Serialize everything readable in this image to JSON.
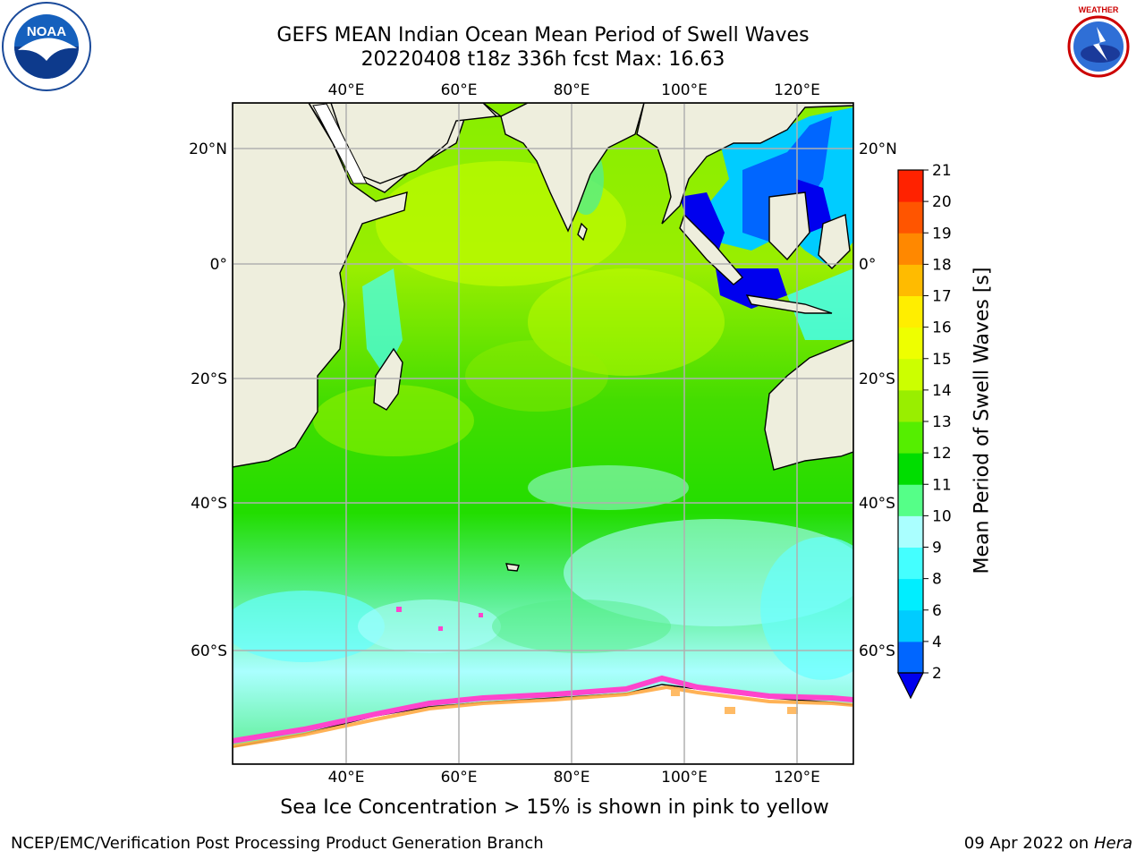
{
  "title": {
    "line1": "GEFS MEAN Indian Ocean Mean Period of Swell Waves",
    "line2": "20220408 t18z 336h fcst   Max: 16.63"
  },
  "logos": {
    "left": {
      "name": "noaa-logo",
      "text": "NOAA"
    },
    "right": {
      "name": "nws-logo",
      "text": "NATIONAL WEATHER SERVICE"
    }
  },
  "map": {
    "lon_labels_top": [
      "40°E",
      "60°E",
      "80°E",
      "100°E",
      "120°E"
    ],
    "lon_labels_bottom": [
      "40°E",
      "60°E",
      "80°E",
      "100°E",
      "120°E"
    ],
    "lat_labels_left": [
      "20°N",
      "0°",
      "20°S",
      "40°S",
      "60°S"
    ],
    "lat_labels_right": [
      "20°N",
      "0°",
      "20°S",
      "40°S",
      "60°S"
    ],
    "land_color": "#eeeedd",
    "grid_color": "#b0b0b0"
  },
  "colorbar": {
    "label": "Mean Period of Swell Waves [s]",
    "ticks": [
      "2",
      "4",
      "6",
      "8",
      "9",
      "10",
      "11",
      "12",
      "13",
      "14",
      "15",
      "16",
      "17",
      "18",
      "19",
      "20",
      "21"
    ],
    "colors": [
      "#0066ff",
      "#00ccff",
      "#00eeff",
      "#44ffff",
      "#aaffff",
      "#55ff88",
      "#00dd00",
      "#55ee00",
      "#99ee00",
      "#ccff00",
      "#eeff00",
      "#ffee00",
      "#ffbb00",
      "#ff8800",
      "#ff5500",
      "#ff2200",
      "#ff0000"
    ],
    "under_color": "#0000ee"
  },
  "note": "Sea Ice Concentration > 15% is shown in pink to yellow",
  "footer": {
    "left": "NCEP/EMC/Verification Post Processing Product Generation Branch",
    "right_date": "09 Apr 2022 on",
    "right_system": "Hera"
  }
}
